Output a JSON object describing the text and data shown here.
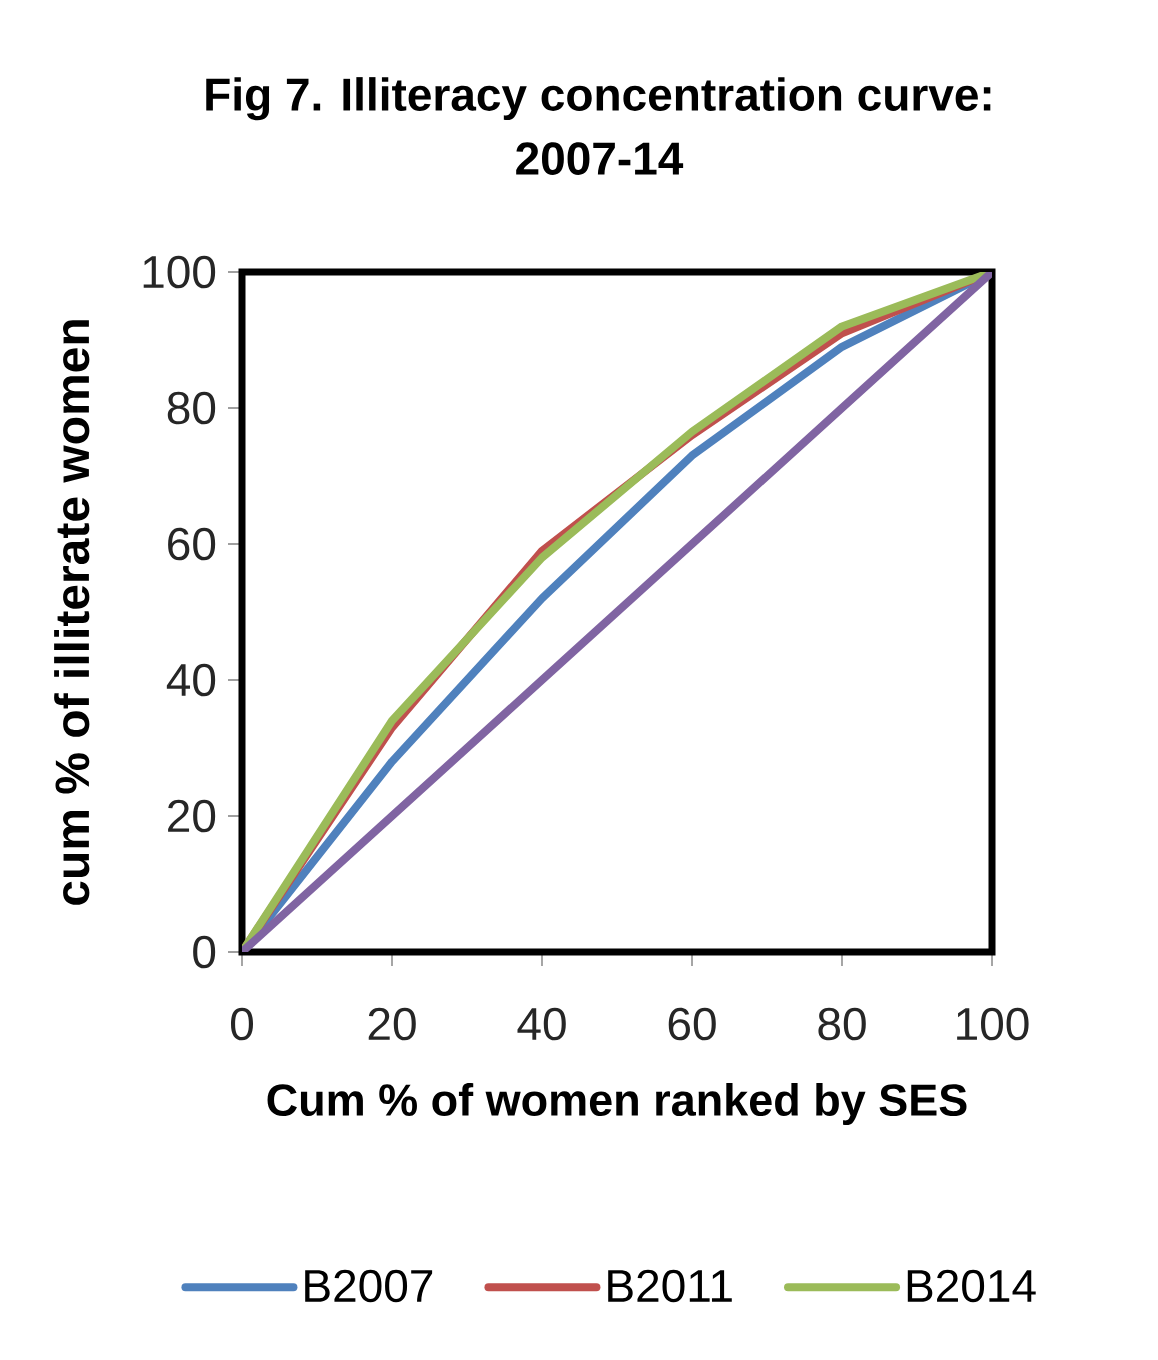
{
  "chart_data": {
    "type": "line",
    "title": "Fig 7. Illiteracy concentration curve: 2007-14",
    "xlabel": "Cum % of women ranked by SES",
    "ylabel": "cum % of illiterate women",
    "x": [
      0,
      20,
      40,
      60,
      80,
      100
    ],
    "series": [
      {
        "name": "B2007",
        "color": "#4f81bd",
        "values": [
          0,
          28,
          52,
          73,
          89,
          100
        ]
      },
      {
        "name": "B2011",
        "color": "#c0504d",
        "values": [
          0,
          33,
          59,
          76,
          91,
          100
        ]
      },
      {
        "name": "B2014",
        "color": "#9bbb59",
        "values": [
          0,
          34,
          58,
          76.5,
          92,
          100
        ]
      },
      {
        "color": "#8064a2",
        "values": [
          0,
          20,
          40,
          60,
          80,
          100
        ]
      }
    ],
    "xlim": [
      0,
      100
    ],
    "ylim": [
      0,
      100
    ],
    "xticks": [
      0,
      20,
      40,
      60,
      80,
      100
    ],
    "yticks": [
      0,
      20,
      40,
      60,
      80,
      100
    ],
    "legend": "bottom",
    "marker": "none",
    "line_style": "solid"
  }
}
